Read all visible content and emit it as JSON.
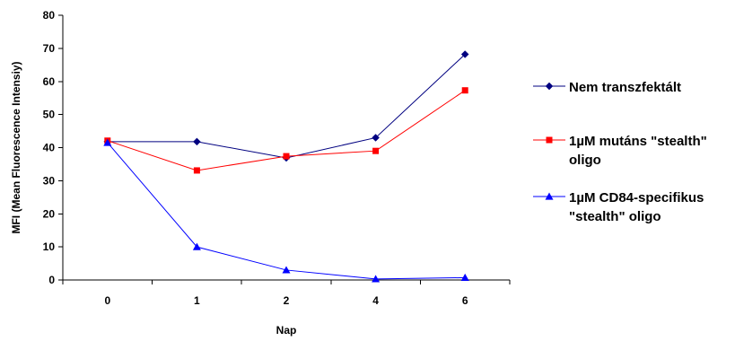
{
  "chart_data": {
    "type": "line",
    "categories": [
      "0",
      "1",
      "2",
      "4",
      "6"
    ],
    "xlabel": "Nap",
    "ylabel": "MFI (Mean Fluorescence Intensiy)",
    "ylim": [
      0,
      80
    ],
    "yticks": [
      0,
      10,
      20,
      30,
      40,
      50,
      60,
      70,
      80
    ],
    "grid": false,
    "legend_position": "right",
    "series": [
      {
        "name": "Nem transzfektált",
        "legend_lines": [
          "Nem transzfektált"
        ],
        "values": [
          41.8,
          41.8,
          36.9,
          43.0,
          68.2
        ],
        "color": "#000080",
        "marker": "diamond"
      },
      {
        "name": "1µM mutáns \"stealth\" oligo",
        "legend_lines": [
          "1µM mutáns \"stealth\"",
          "oligo"
        ],
        "values": [
          42.1,
          33.1,
          37.4,
          39.0,
          57.3
        ],
        "color": "#ff0000",
        "marker": "square"
      },
      {
        "name": "1µM CD84-specifikus \"stealth\" oligo",
        "legend_lines": [
          "1µM CD84-specifikus",
          "\"stealth\" oligo"
        ],
        "values": [
          41.5,
          10.0,
          3.0,
          0.3,
          0.7
        ],
        "color": "#0000ff",
        "marker": "triangle"
      }
    ]
  }
}
